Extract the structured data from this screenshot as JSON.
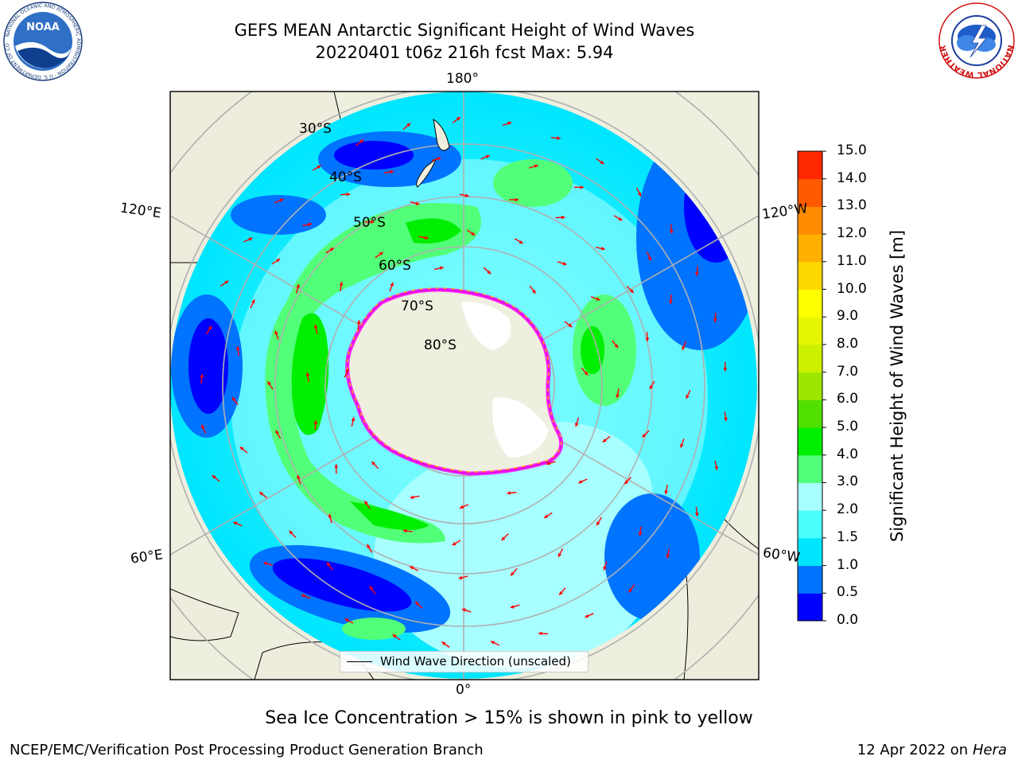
{
  "header": {
    "title": "GEFS MEAN Antarctic Significant Height of Wind Waves",
    "subtitle": "20220401 t06z 216h fcst   Max: 5.94",
    "noaa_logo_text": "NOAA",
    "noaa_ring_text": "NATIONAL OCEANIC AND ATMOSPHERIC ADMINISTRATION · U.S. DEPARTMENT OF COMMERCE",
    "nws_ring_text": "NATIONAL WEATHER SERVICE"
  },
  "map": {
    "projection": "south polar stereographic",
    "longitude_labels": [
      "180°",
      "120°E",
      "120°W",
      "60°E",
      "60°W",
      "0°"
    ],
    "latitude_labels": [
      "30°S",
      "40°S",
      "50°S",
      "60°S",
      "70°S",
      "80°S"
    ],
    "wind_vector_color": "#ff0000",
    "sea_ice_colors": [
      "#ff00ff",
      "#ffaa00"
    ]
  },
  "colorbar": {
    "label": "Significant Height of Wind Waves [m]",
    "ticks": [
      "0.0",
      "0.5",
      "1.0",
      "1.5",
      "2.0",
      "3.0",
      "4.0",
      "5.0",
      "6.0",
      "7.0",
      "8.0",
      "9.0",
      "10.0",
      "11.0",
      "12.0",
      "13.0",
      "14.0",
      "15.0"
    ],
    "colors": [
      "#0000ff",
      "#0073ff",
      "#00e5ff",
      "#4cffff",
      "#a8ffff",
      "#52ff78",
      "#00ee00",
      "#52e000",
      "#9ee600",
      "#ccf000",
      "#e6f500",
      "#ffff00",
      "#ffd700",
      "#ffb000",
      "#ff8c00",
      "#ff5a00",
      "#ff2800"
    ]
  },
  "legend": {
    "label": "Wind Wave Direction (unscaled)"
  },
  "footer": {
    "note": "Sea Ice Concentration > 15% is shown in pink to yellow",
    "credit": "NCEP/EMC/Verification Post Processing Product Generation Branch",
    "date": "12 Apr 2022 on",
    "machine": "Hera"
  }
}
